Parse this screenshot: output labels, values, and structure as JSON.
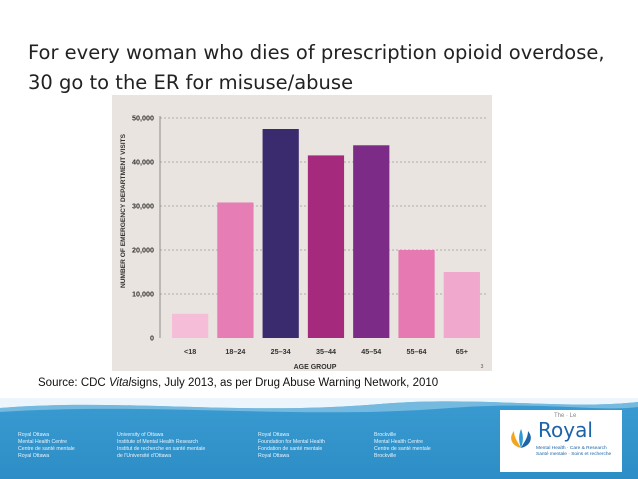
{
  "title": {
    "line1": "For every woman who dies of prescription opioid overdose,",
    "line2": "30 go to the ER for misuse/abuse"
  },
  "chart_data": {
    "type": "bar",
    "categories": [
      "<18",
      "18–24",
      "25–34",
      "35–44",
      "45–54",
      "55–64",
      "65+"
    ],
    "values": [
      5500,
      30800,
      47500,
      41500,
      43800,
      20000,
      15000
    ],
    "colors": [
      "#f5bdd8",
      "#e67db4",
      "#3a2a6e",
      "#a52a7d",
      "#7c2c86",
      "#e679b2",
      "#f0a8cd"
    ],
    "xlabel": "AGE GROUP",
    "ylabel": "NUMBER OF EMERGENCY DEPARTMENT VISITS",
    "yticks": [
      "0",
      "10,000",
      "20,000",
      "30,000",
      "40,000",
      "50,000"
    ],
    "ylim": [
      0,
      50000
    ],
    "grid": true,
    "page_number": "3"
  },
  "source": {
    "prefix": "Source: CDC ",
    "vital": "Vital",
    "suffix": "signs, July 2013, as per Drug Abuse Warning Network, 2010"
  },
  "footer": {
    "columns": [
      [
        "Royal Ottawa",
        "Mental Health Centre",
        "",
        "Centre de santé mentale",
        "Royal Ottawa"
      ],
      [
        "University of Ottawa",
        "Institute of Mental Health Research",
        "",
        "Institut de recherche en santé mentale",
        "de l'Université d'Ottawa"
      ],
      [
        "Royal Ottawa",
        "Foundation for Mental Health",
        "",
        "Fondation de santé mentale",
        "Royal Ottawa"
      ],
      [
        "Brockville",
        "Mental Health Centre",
        "",
        "Centre de santé mentale",
        "Brockville"
      ]
    ],
    "logo": {
      "the": "The · Le",
      "name": "Royal",
      "tag1": "Mental Health · Care & Research",
      "tag2": "Santé mentale · Soins et recherche"
    }
  }
}
